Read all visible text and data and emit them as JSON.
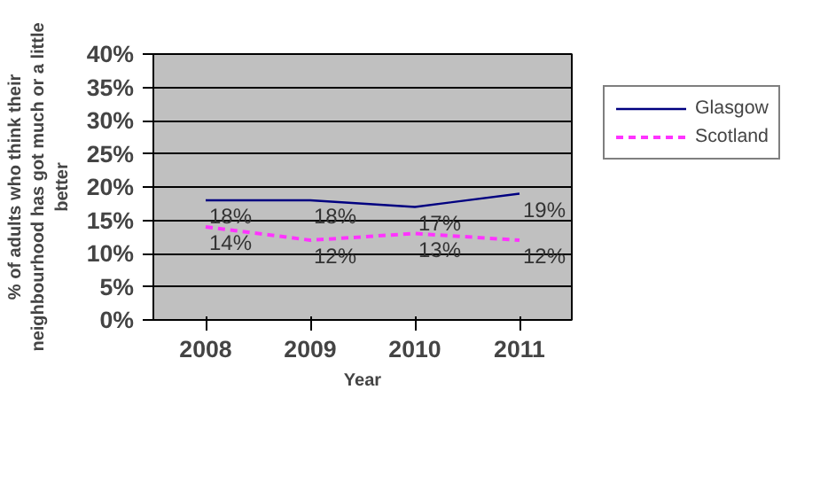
{
  "chart_data": {
    "type": "line",
    "xlabel": "Year",
    "ylabel": "% of adults who think their neighbourhood has got much or a little better",
    "categories": [
      "2008",
      "2009",
      "2010",
      "2011"
    ],
    "series": [
      {
        "name": "Glasgow",
        "color": "#000080",
        "values": [
          18,
          18,
          17,
          19
        ],
        "value_labels": [
          "18%",
          "18%",
          "17%",
          "19%"
        ],
        "line_style": "solid"
      },
      {
        "name": "Scotland",
        "color": "#ff33ff",
        "values": [
          14,
          12,
          13,
          12
        ],
        "value_labels": [
          "14%",
          "12%",
          "13%",
          "12%"
        ],
        "line_style": "dashed"
      }
    ],
    "ylim": [
      0,
      40
    ],
    "yticks": [
      {
        "value": 0,
        "label": "0%"
      },
      {
        "value": 5,
        "label": "5%"
      },
      {
        "value": 10,
        "label": "10%"
      },
      {
        "value": 15,
        "label": "15%"
      },
      {
        "value": 20,
        "label": "20%"
      },
      {
        "value": 25,
        "label": "25%"
      },
      {
        "value": 30,
        "label": "30%"
      },
      {
        "value": 35,
        "label": "35%"
      },
      {
        "value": 40,
        "label": "40%"
      }
    ],
    "grid": "y",
    "legend": "right",
    "marker": "none"
  }
}
